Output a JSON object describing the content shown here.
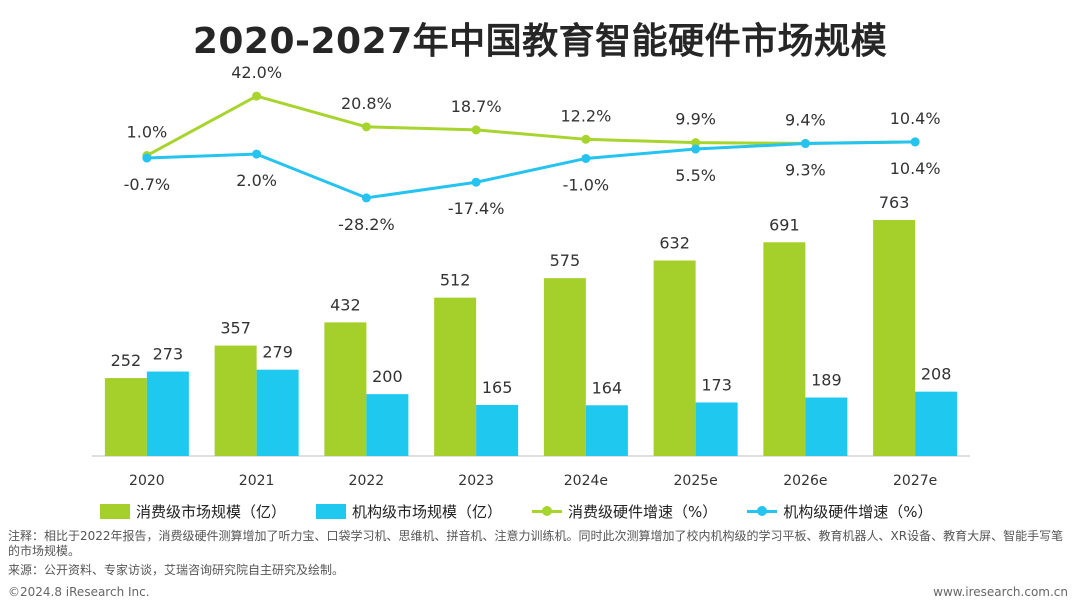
{
  "title": "2020-2027年中国教育智能硬件市场规模",
  "colors": {
    "consumer": "#a5cf2b",
    "institution": "#1ec8ef",
    "consumer_line": "#a8d42e",
    "institution_line": "#24c3f0"
  },
  "legend": {
    "consumer_bar": "消费级市场规模（亿）",
    "institution_bar": "机构级市场规模（亿）",
    "consumer_line": "消费级硬件增速（%）",
    "institution_line": "机构级硬件增速（%）"
  },
  "chart_data": {
    "type": "bar+line",
    "categories": [
      "2020",
      "2021",
      "2022",
      "2023",
      "2024e",
      "2025e",
      "2026e",
      "2027e"
    ],
    "series": [
      {
        "name": "消费级市场规模（亿）",
        "kind": "bar",
        "values": [
          252,
          357,
          432,
          512,
          575,
          632,
          691,
          763
        ],
        "labels": [
          "252",
          "357",
          "432",
          "512",
          "575",
          "632",
          "691",
          "763"
        ]
      },
      {
        "name": "机构级市场规模（亿）",
        "kind": "bar",
        "values": [
          273,
          279,
          200,
          165,
          164,
          173,
          189,
          208
        ],
        "labels": [
          "273",
          "279",
          "200",
          "165",
          "164",
          "173",
          "189",
          "208"
        ]
      },
      {
        "name": "消费级硬件增速（%）",
        "kind": "line",
        "values": [
          1.0,
          42.0,
          20.8,
          18.7,
          12.2,
          9.9,
          9.4,
          10.4
        ],
        "labels": [
          "1.0%",
          "42.0%",
          "20.8%",
          "18.7%",
          "12.2%",
          "9.9%",
          "9.4%",
          "10.4%"
        ]
      },
      {
        "name": "机构级硬件增速（%）",
        "kind": "line",
        "values": [
          -0.7,
          2.0,
          -28.2,
          -17.4,
          -1.0,
          5.5,
          9.3,
          10.4
        ],
        "labels": [
          "-0.7%",
          "2.0%",
          "-28.2%",
          "-17.4%",
          "-1.0%",
          "5.5%",
          "9.3%",
          "10.4%"
        ]
      }
    ],
    "grid": false,
    "legend_position": "bottom"
  },
  "note": "注释：相比于2022年报告，消费级硬件测算增加了听力宝、口袋学习机、思维机、拼音机、注意力训练机。同时此次测算增加了校内机构级的学习平板、教育机器人、XR设备、教育大屏、智能手写笔的市场规模。",
  "source": "来源：公开资料、专家访谈，艾瑞咨询研究院自主研究及绘制。",
  "footer": {
    "copyright": "©2024.8 iResearch Inc.",
    "website": "www.iresearch.com.cn"
  }
}
